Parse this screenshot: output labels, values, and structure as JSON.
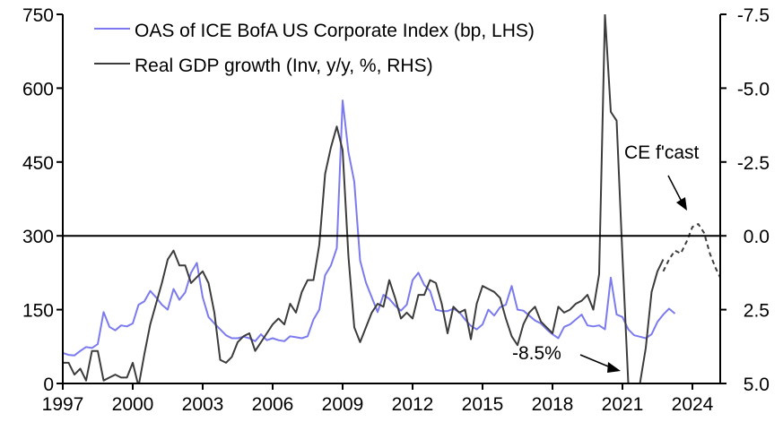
{
  "chart_data": {
    "type": "line",
    "title": "",
    "xlabel": "",
    "ylabel_left": "",
    "ylabel_right": "",
    "x_start": 1997.0,
    "x_step_years": 0.25,
    "xlim": [
      1997,
      2025.15
    ],
    "x_ticks": [
      1997,
      2000,
      2003,
      2006,
      2009,
      2012,
      2015,
      2018,
      2021,
      2024
    ],
    "x_tick_labels": [
      "1997",
      "2000",
      "2003",
      "2006",
      "2009",
      "2012",
      "2015",
      "2018",
      "2021",
      "2024"
    ],
    "left_axis": {
      "ylim": [
        0,
        750
      ],
      "ticks": [
        0,
        150,
        300,
        450,
        600,
        750
      ],
      "tick_labels": [
        "0",
        "150",
        "300",
        "450",
        "600",
        "750"
      ]
    },
    "right_axis": {
      "inverted": true,
      "ylim": [
        5.0,
        -7.5
      ],
      "ticks": [
        -7.5,
        -5.0,
        -2.5,
        0.0,
        2.5,
        5.0
      ],
      "tick_labels": [
        "-7.5",
        "-5.0",
        "-2.5",
        "0.0",
        "2.5",
        "5.0"
      ]
    },
    "reference_line": {
      "axis": "right",
      "value": 0.0
    },
    "legend": {
      "position": "top-left",
      "entries": [
        "OAS of ICE BofA US Corporate Index (bp, LHS)",
        "Real GDP growth (Inv, y/y, %, RHS)"
      ]
    },
    "series": [
      {
        "name": "OAS of ICE BofA US Corporate Index (bp, LHS)",
        "axis": "left",
        "color": "#7b7bef",
        "style": "solid",
        "values": [
          62,
          58,
          57,
          66,
          74,
          72,
          80,
          145,
          115,
          108,
          118,
          116,
          122,
          160,
          167,
          188,
          175,
          160,
          150,
          192,
          170,
          185,
          225,
          245,
          175,
          135,
          122,
          110,
          98,
          92,
          92,
          95,
          92,
          86,
          100,
          88,
          92,
          88,
          86,
          96,
          94,
          92,
          96,
          130,
          150,
          220,
          240,
          275,
          575,
          470,
          410,
          250,
          205,
          175,
          145,
          180,
          172,
          158,
          148,
          160,
          210,
          225,
          200,
          188,
          150,
          147,
          147,
          152,
          145,
          130,
          117,
          110,
          120,
          150,
          138,
          155,
          160,
          198,
          150,
          148,
          138,
          128,
          122,
          110,
          100,
          92,
          115,
          120,
          130,
          140,
          118,
          116,
          118,
          110,
          215,
          140,
          135,
          110,
          98,
          95,
          92,
          100,
          125,
          140,
          152,
          142
        ]
      },
      {
        "name": "Real GDP growth (Inv, y/y, %, RHS)",
        "axis": "right",
        "color": "#3c3c3c",
        "style": "solid",
        "values": [
          4.3,
          4.3,
          4.7,
          4.5,
          4.9,
          3.9,
          3.9,
          4.9,
          4.8,
          4.7,
          4.8,
          4.8,
          4.3,
          5.1,
          4.0,
          3.0,
          2.3,
          1.6,
          0.8,
          0.5,
          1.0,
          1.0,
          1.6,
          1.4,
          1.2,
          1.6,
          2.6,
          4.2,
          4.3,
          4.1,
          3.6,
          3.4,
          3.3,
          3.9,
          3.6,
          3.3,
          3.0,
          2.8,
          3.0,
          2.3,
          2.6,
          1.9,
          1.5,
          1.5,
          0.3,
          -2.1,
          -3.0,
          -3.7,
          -2.9,
          0.7,
          3.1,
          3.6,
          3.1,
          2.6,
          2.3,
          2.4,
          1.5,
          2.1,
          2.8,
          2.6,
          2.8,
          2.0,
          2.0,
          1.5,
          1.6,
          2.3,
          3.3,
          2.4,
          2.6,
          2.5,
          3.5,
          2.3,
          1.7,
          1.8,
          1.9,
          2.1,
          2.8,
          3.4,
          3.7,
          3.0,
          2.6,
          2.4,
          2.9,
          3.1,
          3.3,
          2.4,
          2.6,
          2.5,
          2.3,
          2.2,
          2.0,
          2.5,
          1.3,
          -7.5,
          -4.2,
          -3.9,
          0.7,
          5.0,
          5.0,
          5.0,
          3.8,
          1.9,
          1.2,
          0.8
        ]
      },
      {
        "name": "CE forecast (Real GDP growth, Inv)",
        "axis": "right",
        "color": "#3c3c3c",
        "style": "dashed",
        "x_start": 2022.75,
        "values": [
          1.2,
          0.8,
          0.5,
          0.6,
          0.2,
          -0.3,
          -0.4,
          -0.1,
          0.6,
          1.1,
          1.5,
          1.8
        ]
      }
    ],
    "annotations": [
      {
        "text": "CE f'cast",
        "arrow": "pointing down-right to forecast peak around 2023.8"
      },
      {
        "text": "-8.5%",
        "arrow": "pointing down-right to 2020 GDP trough (off-scale)"
      }
    ]
  }
}
